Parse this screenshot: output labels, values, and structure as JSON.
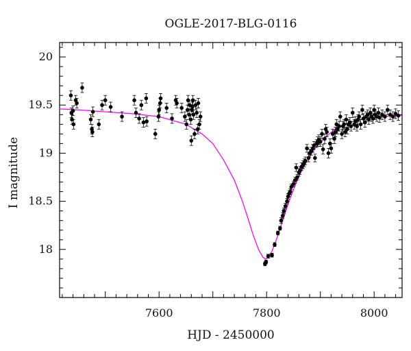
{
  "chart_data": {
    "type": "scatter",
    "title": "OGLE-2017-BLG-0116",
    "xlabel": "HJD - 2450000",
    "ylabel": "I magnitude",
    "xlim": [
      7415,
      8052
    ],
    "ylim": [
      20.15,
      17.5
    ],
    "y_inverted": true,
    "x_ticks": [
      7600,
      7800,
      8000
    ],
    "y_ticks": [
      18,
      18.5,
      19,
      19.5,
      20
    ],
    "y_tick_labels": [
      "18",
      "18.5",
      "19",
      "19.5",
      "20"
    ],
    "grid": false,
    "colors": {
      "data": "#000000",
      "model": "#ff00ff",
      "frame": "#000000"
    },
    "series": [
      {
        "kind": "points_with_errorbars",
        "points": [
          {
            "x": 7436,
            "y": 19.6,
            "err": 0.05
          },
          {
            "x": 7437,
            "y": 19.42,
            "err": 0.05
          },
          {
            "x": 7438,
            "y": 19.35,
            "err": 0.05
          },
          {
            "x": 7440,
            "y": 19.44,
            "err": 0.05
          },
          {
            "x": 7441,
            "y": 19.3,
            "err": 0.05
          },
          {
            "x": 7445,
            "y": 19.55,
            "err": 0.05
          },
          {
            "x": 7447,
            "y": 19.52,
            "err": 0.05
          },
          {
            "x": 7457,
            "y": 19.68,
            "err": 0.05
          },
          {
            "x": 7473,
            "y": 19.35,
            "err": 0.05
          },
          {
            "x": 7475,
            "y": 19.25,
            "err": 0.05
          },
          {
            "x": 7476,
            "y": 19.22,
            "err": 0.05
          },
          {
            "x": 7477,
            "y": 19.43,
            "err": 0.05
          },
          {
            "x": 7488,
            "y": 19.3,
            "err": 0.05
          },
          {
            "x": 7494,
            "y": 19.5,
            "err": 0.05
          },
          {
            "x": 7500,
            "y": 19.55,
            "err": 0.05
          },
          {
            "x": 7510,
            "y": 19.48,
            "err": 0.05
          },
          {
            "x": 7531,
            "y": 19.38,
            "err": 0.05
          },
          {
            "x": 7554,
            "y": 19.55,
            "err": 0.05
          },
          {
            "x": 7557,
            "y": 19.42,
            "err": 0.05
          },
          {
            "x": 7563,
            "y": 19.36,
            "err": 0.05
          },
          {
            "x": 7567,
            "y": 19.5,
            "err": 0.05
          },
          {
            "x": 7571,
            "y": 19.32,
            "err": 0.05
          },
          {
            "x": 7576,
            "y": 19.57,
            "err": 0.05
          },
          {
            "x": 7577,
            "y": 19.33,
            "err": 0.05
          },
          {
            "x": 7593,
            "y": 19.2,
            "err": 0.05
          },
          {
            "x": 7599,
            "y": 19.38,
            "err": 0.05
          },
          {
            "x": 7600,
            "y": 19.45,
            "err": 0.05
          },
          {
            "x": 7602,
            "y": 19.52,
            "err": 0.05
          },
          {
            "x": 7603,
            "y": 19.57,
            "err": 0.05
          },
          {
            "x": 7614,
            "y": 19.47,
            "err": 0.05
          },
          {
            "x": 7624,
            "y": 19.36,
            "err": 0.05
          },
          {
            "x": 7631,
            "y": 19.55,
            "err": 0.05
          },
          {
            "x": 7633,
            "y": 19.52,
            "err": 0.05
          },
          {
            "x": 7642,
            "y": 19.47,
            "err": 0.05
          },
          {
            "x": 7648,
            "y": 19.38,
            "err": 0.05
          },
          {
            "x": 7651,
            "y": 19.3,
            "err": 0.05
          },
          {
            "x": 7653,
            "y": 19.45,
            "err": 0.05
          },
          {
            "x": 7654,
            "y": 19.55,
            "err": 0.05
          },
          {
            "x": 7656,
            "y": 19.4,
            "err": 0.05
          },
          {
            "x": 7657,
            "y": 19.5,
            "err": 0.05
          },
          {
            "x": 7659,
            "y": 19.35,
            "err": 0.05
          },
          {
            "x": 7660,
            "y": 19.13,
            "err": 0.05
          },
          {
            "x": 7661,
            "y": 19.45,
            "err": 0.05
          },
          {
            "x": 7662,
            "y": 19.48,
            "err": 0.05
          },
          {
            "x": 7663,
            "y": 19.55,
            "err": 0.05
          },
          {
            "x": 7664,
            "y": 19.4,
            "err": 0.05
          },
          {
            "x": 7666,
            "y": 19.2,
            "err": 0.05
          },
          {
            "x": 7668,
            "y": 19.5,
            "err": 0.05
          },
          {
            "x": 7670,
            "y": 19.42,
            "err": 0.05
          },
          {
            "x": 7672,
            "y": 19.25,
            "err": 0.05
          },
          {
            "x": 7673,
            "y": 19.52,
            "err": 0.05
          },
          {
            "x": 7675,
            "y": 19.3,
            "err": 0.05
          },
          {
            "x": 7677,
            "y": 19.38,
            "err": 0.05
          },
          {
            "x": 7797,
            "y": 17.85,
            "err": 0.02
          },
          {
            "x": 7799,
            "y": 17.87,
            "err": 0.02
          },
          {
            "x": 7803,
            "y": 17.93,
            "err": 0.02
          },
          {
            "x": 7810,
            "y": 17.94,
            "err": 0.02
          },
          {
            "x": 7815,
            "y": 18.05,
            "err": 0.02
          },
          {
            "x": 7821,
            "y": 18.17,
            "err": 0.02
          },
          {
            "x": 7825,
            "y": 18.22,
            "err": 0.02
          },
          {
            "x": 7827,
            "y": 18.3,
            "err": 0.03
          },
          {
            "x": 7830,
            "y": 18.35,
            "err": 0.03
          },
          {
            "x": 7832,
            "y": 18.4,
            "err": 0.03
          },
          {
            "x": 7835,
            "y": 18.45,
            "err": 0.03
          },
          {
            "x": 7838,
            "y": 18.5,
            "err": 0.03
          },
          {
            "x": 7840,
            "y": 18.55,
            "err": 0.03
          },
          {
            "x": 7842,
            "y": 18.58,
            "err": 0.03
          },
          {
            "x": 7844,
            "y": 18.6,
            "err": 0.03
          },
          {
            "x": 7846,
            "y": 18.65,
            "err": 0.03
          },
          {
            "x": 7850,
            "y": 18.68,
            "err": 0.03
          },
          {
            "x": 7853,
            "y": 18.72,
            "err": 0.03
          },
          {
            "x": 7855,
            "y": 18.85,
            "err": 0.04
          },
          {
            "x": 7857,
            "y": 18.75,
            "err": 0.03
          },
          {
            "x": 7860,
            "y": 18.8,
            "err": 0.04
          },
          {
            "x": 7862,
            "y": 18.82,
            "err": 0.04
          },
          {
            "x": 7865,
            "y": 18.86,
            "err": 0.04
          },
          {
            "x": 7868,
            "y": 18.88,
            "err": 0.04
          },
          {
            "x": 7870,
            "y": 18.9,
            "err": 0.04
          },
          {
            "x": 7872,
            "y": 18.92,
            "err": 0.04
          },
          {
            "x": 7875,
            "y": 19.05,
            "err": 0.04
          },
          {
            "x": 7878,
            "y": 18.95,
            "err": 0.04
          },
          {
            "x": 7880,
            "y": 19.0,
            "err": 0.04
          },
          {
            "x": 7883,
            "y": 19.02,
            "err": 0.04
          },
          {
            "x": 7886,
            "y": 19.05,
            "err": 0.04
          },
          {
            "x": 7888,
            "y": 19.08,
            "err": 0.04
          },
          {
            "x": 7890,
            "y": 18.95,
            "err": 0.04
          },
          {
            "x": 7893,
            "y": 19.1,
            "err": 0.04
          },
          {
            "x": 7895,
            "y": 19.12,
            "err": 0.05
          },
          {
            "x": 7897,
            "y": 19.14,
            "err": 0.05
          },
          {
            "x": 7900,
            "y": 19.12,
            "err": 0.05
          },
          {
            "x": 7903,
            "y": 19.2,
            "err": 0.05
          },
          {
            "x": 7905,
            "y": 19.04,
            "err": 0.05
          },
          {
            "x": 7908,
            "y": 19.15,
            "err": 0.05
          },
          {
            "x": 7910,
            "y": 19.25,
            "err": 0.05
          },
          {
            "x": 7912,
            "y": 19.22,
            "err": 0.05
          },
          {
            "x": 7915,
            "y": 19.0,
            "err": 0.05
          },
          {
            "x": 7918,
            "y": 19.1,
            "err": 0.05
          },
          {
            "x": 7920,
            "y": 19.05,
            "err": 0.05
          },
          {
            "x": 7923,
            "y": 19.2,
            "err": 0.05
          },
          {
            "x": 7926,
            "y": 19.15,
            "err": 0.05
          },
          {
            "x": 7928,
            "y": 19.22,
            "err": 0.05
          },
          {
            "x": 7930,
            "y": 19.3,
            "err": 0.05
          },
          {
            "x": 7932,
            "y": 19.25,
            "err": 0.05
          },
          {
            "x": 7935,
            "y": 19.28,
            "err": 0.05
          },
          {
            "x": 7937,
            "y": 19.38,
            "err": 0.05
          },
          {
            "x": 7940,
            "y": 19.2,
            "err": 0.05
          },
          {
            "x": 7942,
            "y": 19.28,
            "err": 0.05
          },
          {
            "x": 7944,
            "y": 19.3,
            "err": 0.05
          },
          {
            "x": 7946,
            "y": 19.22,
            "err": 0.05
          },
          {
            "x": 7948,
            "y": 19.35,
            "err": 0.05
          },
          {
            "x": 7950,
            "y": 19.25,
            "err": 0.05
          },
          {
            "x": 7952,
            "y": 19.3,
            "err": 0.05
          },
          {
            "x": 7955,
            "y": 19.32,
            "err": 0.05
          },
          {
            "x": 7957,
            "y": 19.28,
            "err": 0.05
          },
          {
            "x": 7960,
            "y": 19.42,
            "err": 0.05
          },
          {
            "x": 7963,
            "y": 19.3,
            "err": 0.05
          },
          {
            "x": 7965,
            "y": 19.33,
            "err": 0.05
          },
          {
            "x": 7968,
            "y": 19.28,
            "err": 0.05
          },
          {
            "x": 7970,
            "y": 19.35,
            "err": 0.05
          },
          {
            "x": 7972,
            "y": 19.38,
            "err": 0.05
          },
          {
            "x": 7975,
            "y": 19.3,
            "err": 0.05
          },
          {
            "x": 7978,
            "y": 19.45,
            "err": 0.05
          },
          {
            "x": 7980,
            "y": 19.36,
            "err": 0.05
          },
          {
            "x": 7983,
            "y": 19.32,
            "err": 0.05
          },
          {
            "x": 7985,
            "y": 19.38,
            "err": 0.05
          },
          {
            "x": 7988,
            "y": 19.4,
            "err": 0.05
          },
          {
            "x": 7990,
            "y": 19.35,
            "err": 0.05
          },
          {
            "x": 7993,
            "y": 19.42,
            "err": 0.05
          },
          {
            "x": 7995,
            "y": 19.38,
            "err": 0.05
          },
          {
            "x": 7998,
            "y": 19.36,
            "err": 0.05
          },
          {
            "x": 8000,
            "y": 19.45,
            "err": 0.05
          },
          {
            "x": 8002,
            "y": 19.4,
            "err": 0.05
          },
          {
            "x": 8005,
            "y": 19.38,
            "err": 0.05
          },
          {
            "x": 8008,
            "y": 19.42,
            "err": 0.05
          },
          {
            "x": 8010,
            "y": 19.37,
            "err": 0.05
          },
          {
            "x": 8015,
            "y": 19.4,
            "err": 0.05
          },
          {
            "x": 8020,
            "y": 19.38,
            "err": 0.05
          },
          {
            "x": 8025,
            "y": 19.45,
            "err": 0.05
          },
          {
            "x": 8030,
            "y": 19.4,
            "err": 0.05
          },
          {
            "x": 8035,
            "y": 19.38,
            "err": 0.05
          },
          {
            "x": 8040,
            "y": 19.41,
            "err": 0.05
          },
          {
            "x": 8045,
            "y": 19.39,
            "err": 0.05
          }
        ]
      },
      {
        "kind": "model_curve",
        "points": [
          {
            "x": 7415,
            "y": 19.46
          },
          {
            "x": 7450,
            "y": 19.45
          },
          {
            "x": 7500,
            "y": 19.43
          },
          {
            "x": 7550,
            "y": 19.41
          },
          {
            "x": 7600,
            "y": 19.38
          },
          {
            "x": 7650,
            "y": 19.3
          },
          {
            "x": 7680,
            "y": 19.2
          },
          {
            "x": 7700,
            "y": 19.1
          },
          {
            "x": 7720,
            "y": 18.93
          },
          {
            "x": 7740,
            "y": 18.72
          },
          {
            "x": 7755,
            "y": 18.5
          },
          {
            "x": 7765,
            "y": 18.33
          },
          {
            "x": 7775,
            "y": 18.15
          },
          {
            "x": 7785,
            "y": 18.0
          },
          {
            "x": 7793,
            "y": 17.92
          },
          {
            "x": 7798,
            "y": 17.9
          },
          {
            "x": 7803,
            "y": 17.92
          },
          {
            "x": 7810,
            "y": 17.98
          },
          {
            "x": 7820,
            "y": 18.13
          },
          {
            "x": 7830,
            "y": 18.3
          },
          {
            "x": 7840,
            "y": 18.47
          },
          {
            "x": 7850,
            "y": 18.62
          },
          {
            "x": 7860,
            "y": 18.76
          },
          {
            "x": 7875,
            "y": 18.92
          },
          {
            "x": 7890,
            "y": 19.05
          },
          {
            "x": 7910,
            "y": 19.17
          },
          {
            "x": 7930,
            "y": 19.26
          },
          {
            "x": 7955,
            "y": 19.32
          },
          {
            "x": 7980,
            "y": 19.36
          },
          {
            "x": 8010,
            "y": 19.38
          },
          {
            "x": 8052,
            "y": 19.39
          }
        ]
      }
    ]
  }
}
